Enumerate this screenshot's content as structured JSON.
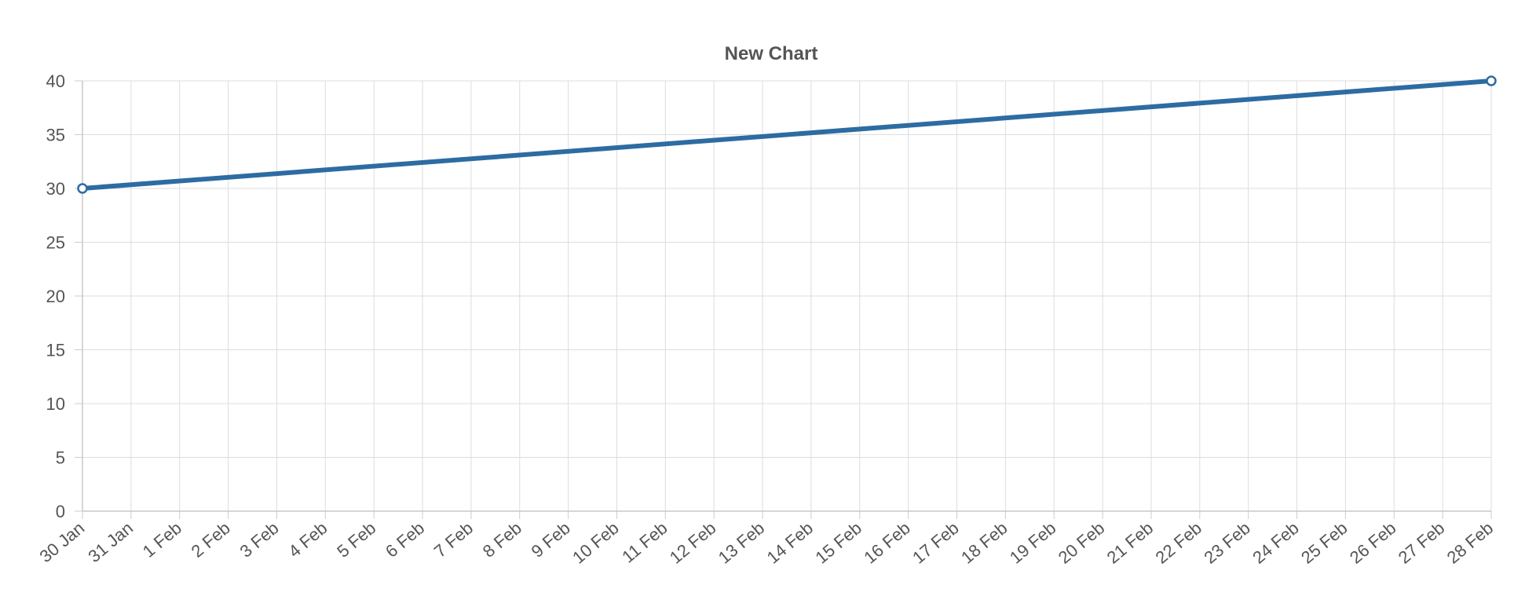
{
  "chart_data": {
    "type": "line",
    "title": "New Chart",
    "xlabel": "",
    "ylabel": "",
    "ylim": [
      0,
      40
    ],
    "y_ticks": [
      0,
      5,
      10,
      15,
      20,
      25,
      30,
      35,
      40
    ],
    "grid": true,
    "legend": "none",
    "categories": [
      "30 Jan",
      "31 Jan",
      "1 Feb",
      "2 Feb",
      "3 Feb",
      "4 Feb",
      "5 Feb",
      "6 Feb",
      "7 Feb",
      "8 Feb",
      "9 Feb",
      "10 Feb",
      "11 Feb",
      "12 Feb",
      "13 Feb",
      "14 Feb",
      "15 Feb",
      "16 Feb",
      "17 Feb",
      "18 Feb",
      "19 Feb",
      "20 Feb",
      "21 Feb",
      "22 Feb",
      "23 Feb",
      "24 Feb",
      "25 Feb",
      "26 Feb",
      "27 Feb",
      "28 Feb"
    ],
    "series": [
      {
        "color": "#2d6ca2",
        "points": [
          {
            "x": "30 Jan",
            "y": 30
          },
          {
            "x": "28 Feb",
            "y": 40
          }
        ]
      }
    ]
  }
}
